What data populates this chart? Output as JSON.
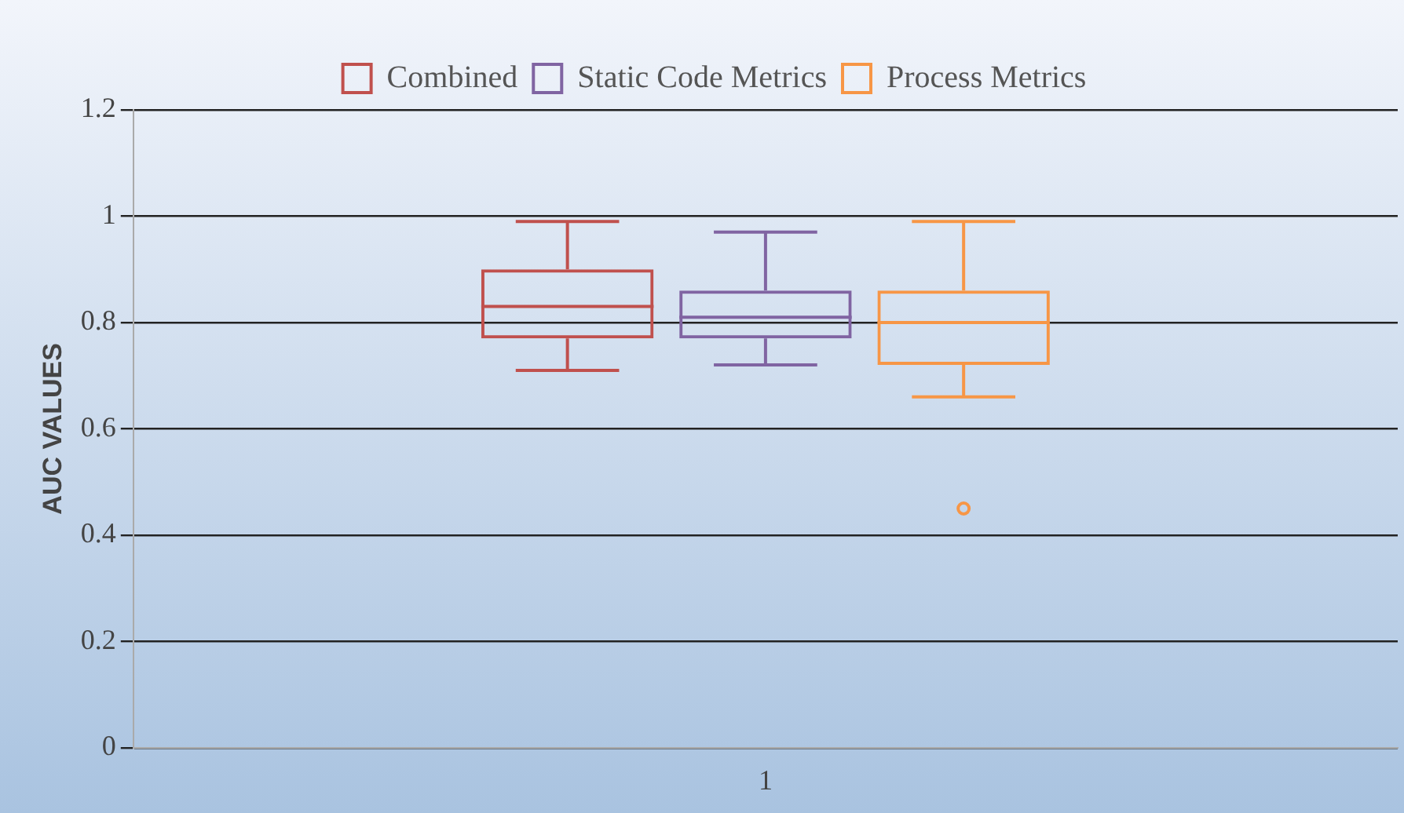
{
  "chart_data": {
    "type": "box",
    "ylabel": "AUC VALUES",
    "categories": [
      "1"
    ],
    "ylim": [
      0,
      1.2
    ],
    "yticks": [
      0,
      0.2,
      0.4,
      0.6,
      0.8,
      1,
      1.2
    ],
    "grid": "y",
    "legend": "top",
    "series": [
      {
        "name": "Combined",
        "color": "#c0504d",
        "boxes": [
          {
            "low": 0.71,
            "q1": 0.77,
            "median": 0.83,
            "q3": 0.9,
            "high": 0.99
          }
        ]
      },
      {
        "name": "Static Code Metrics",
        "color": "#8064a2",
        "boxes": [
          {
            "low": 0.72,
            "q1": 0.77,
            "median": 0.81,
            "q3": 0.86,
            "high": 0.97
          }
        ]
      },
      {
        "name": "Process Metrics",
        "color": "#f79646",
        "boxes": [
          {
            "low": 0.66,
            "q1": 0.72,
            "median": 0.8,
            "q3": 0.86,
            "high": 0.99,
            "outliers": [
              0.45
            ]
          }
        ]
      }
    ]
  }
}
